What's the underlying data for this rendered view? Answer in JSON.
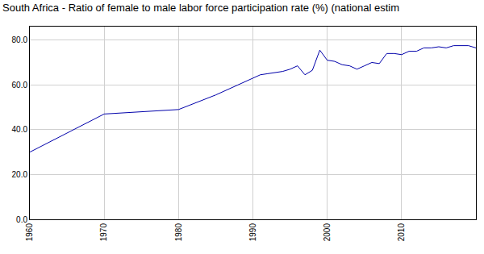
{
  "chart_data": {
    "type": "line",
    "title": "South Africa - Ratio of female to male labor force participation rate (%) (national estim",
    "x": [
      1960,
      1970,
      1980,
      1985,
      1990,
      1991,
      1992,
      1993,
      1994,
      1995,
      1996,
      1997,
      1998,
      1999,
      2000,
      2001,
      2002,
      2003,
      2004,
      2005,
      2006,
      2007,
      2008,
      2009,
      2010,
      2011,
      2012,
      2013,
      2014,
      2015,
      2016,
      2017,
      2018,
      2019,
      2020
    ],
    "values": [
      30,
      47,
      49,
      55.5,
      63,
      64.5,
      65,
      65.5,
      66,
      67,
      68.5,
      64.5,
      66.5,
      75.5,
      71,
      70.5,
      69,
      68.5,
      67,
      68.5,
      70,
      69.5,
      74,
      74,
      73.5,
      75,
      75,
      76.5,
      76.5,
      77,
      76.5,
      77.5,
      77.5,
      77.5,
      76.5
    ],
    "color": "#0000aa",
    "xlim": [
      1960,
      2020
    ],
    "xticks": [
      1960,
      1970,
      1980,
      1990,
      2000,
      2010
    ],
    "ylim": [
      0,
      86
    ],
    "yticks": [
      {
        "value": 0,
        "label": "0.0"
      },
      {
        "value": 20,
        "label": "20.0"
      },
      {
        "value": 40,
        "label": "40.0"
      },
      {
        "value": 60,
        "label": "60.0"
      },
      {
        "value": 80,
        "label": "80.0"
      }
    ],
    "grid": true
  }
}
